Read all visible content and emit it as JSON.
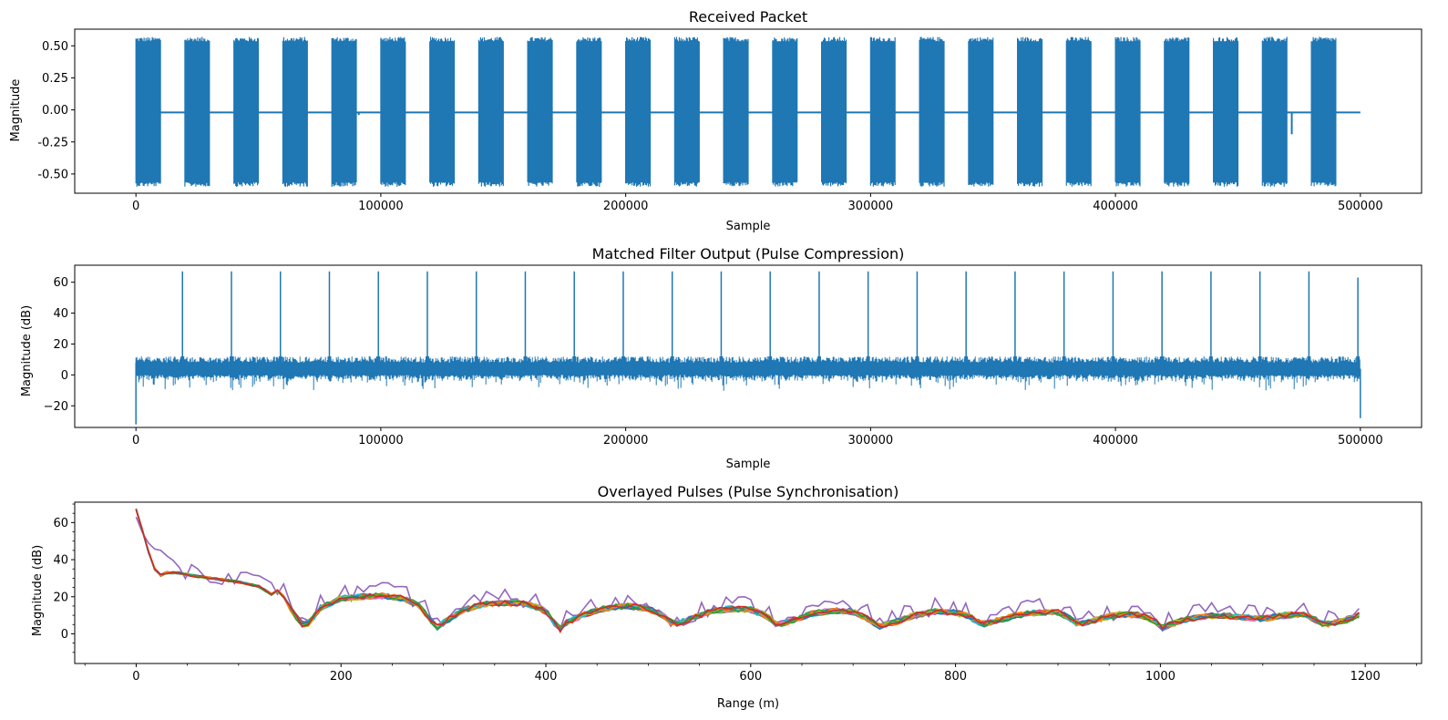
{
  "chart_data": [
    {
      "type": "line",
      "title": "Received Packet",
      "xlabel": "Sample",
      "ylabel": "Magnitude",
      "xlim": [
        -25000,
        525000
      ],
      "ylim": [
        -0.65,
        0.63
      ],
      "xticks": [
        0,
        100000,
        200000,
        300000,
        400000,
        500000
      ],
      "xtick_labels": [
        "0",
        "100000",
        "200000",
        "300000",
        "400000",
        "500000"
      ],
      "yticks": [
        0.5,
        0.25,
        0.0,
        -0.25,
        -0.5
      ],
      "ytick_labels": [
        "0.50",
        "0.25",
        "0.00",
        "-0.25",
        "-0.50"
      ],
      "grid": false,
      "series": [
        {
          "color": "#1f77b4",
          "burst_starts": [
            0,
            20000,
            40000,
            60000,
            80000,
            100000,
            120000,
            140000,
            160000,
            180000,
            200000,
            220000,
            240000,
            260000,
            280000,
            300000,
            320000,
            340000,
            360000,
            380000,
            400000,
            420000,
            440000,
            460000,
            480000
          ],
          "burst_length": 10000,
          "burst_amplitude": [
            -0.58,
            0.55
          ],
          "baseline": -0.02,
          "total_samples": 500000,
          "glitches": [
            {
              "x": 91000,
              "y": -0.04
            },
            {
              "x": 441000,
              "y": -0.1
            },
            {
              "x": 472000,
              "y": -0.19
            }
          ]
        }
      ]
    },
    {
      "type": "line",
      "title": "Matched Filter Output (Pulse Compression)",
      "xlabel": "Sample",
      "ylabel": "Magnitude (dB)",
      "xlim": [
        -25000,
        525000
      ],
      "ylim": [
        -34,
        71
      ],
      "xticks": [
        0,
        100000,
        200000,
        300000,
        400000,
        500000
      ],
      "xtick_labels": [
        "0",
        "100000",
        "200000",
        "300000",
        "400000",
        "500000"
      ],
      "yticks": [
        60,
        40,
        20,
        0,
        -20
      ],
      "ytick_labels": [
        "60",
        "40",
        "20",
        "0",
        "−20"
      ],
      "grid": false,
      "series": [
        {
          "color": "#1f77b4",
          "noise_floor": 4,
          "peak_positions": [
            19000,
            39000,
            59000,
            79000,
            99000,
            119000,
            139000,
            159000,
            179000,
            199000,
            219000,
            239000,
            259000,
            279000,
            299000,
            319000,
            339000,
            359000,
            379000,
            399000,
            419000,
            439000,
            459000,
            479000,
            499000
          ],
          "peak_value": 67,
          "end_peak_value": 63,
          "min_value": -32
        }
      ]
    },
    {
      "type": "line",
      "title": "Overlayed Pulses (Pulse Synchronisation)",
      "xlabel": "Range (m)",
      "ylabel": "Magnitude (dB)",
      "xlim": [
        -60,
        1255
      ],
      "ylim": [
        -16,
        71
      ],
      "xticks": [
        0,
        200,
        400,
        600,
        800,
        1000,
        1200
      ],
      "xtick_labels": [
        "0",
        "200",
        "400",
        "600",
        "800",
        "1000",
        "1200"
      ],
      "yticks": [
        60,
        40,
        20,
        0
      ],
      "ytick_labels": [
        "60",
        "40",
        "20",
        "0"
      ],
      "grid": false,
      "colors": [
        "#1f77b4",
        "#ff7f0e",
        "#2ca02c",
        "#d62728",
        "#9467bd",
        "#8c564b",
        "#e377c2",
        "#7f7f7f",
        "#bcbd22",
        "#17becf"
      ],
      "series_count": 24,
      "range_step_m": 6,
      "range_max_m": 1194,
      "envelope": {
        "x": [
          0,
          5,
          10,
          16,
          22,
          30,
          40,
          60,
          80,
          100,
          120,
          133,
          140,
          145,
          150,
          160,
          165,
          172,
          180,
          200,
          220,
          240,
          260,
          275,
          285,
          295,
          300,
          320,
          340,
          360,
          380,
          400,
          413,
          420,
          440,
          460,
          480,
          500,
          515,
          525,
          540,
          560,
          580,
          600,
          615,
          625,
          640,
          660,
          680,
          700,
          715,
          725,
          740,
          760,
          780,
          800,
          815,
          825,
          840,
          860,
          880,
          900,
          910,
          920,
          940,
          960,
          980,
          995,
          1000,
          1010,
          1020,
          1040,
          1060,
          1080,
          1100,
          1120,
          1140,
          1150,
          1160,
          1180,
          1194
        ],
        "y": [
          67,
          58,
          48,
          37,
          31,
          33,
          33,
          31,
          29.5,
          28,
          25.5,
          21,
          24,
          19,
          14,
          6,
          4,
          8,
          14,
          19,
          20,
          20.5,
          19,
          16,
          9,
          3,
          6,
          13,
          16,
          16.5,
          16.5,
          12.5,
          2,
          6,
          11,
          14,
          15,
          13.5,
          10,
          5,
          8,
          12,
          13.5,
          13,
          10,
          5,
          7,
          11,
          12.5,
          12,
          8,
          4,
          6,
          10,
          12,
          11.5,
          9,
          5,
          7,
          10,
          11.5,
          11.5,
          9,
          5,
          8,
          10.5,
          10,
          7,
          3,
          5,
          7,
          9.5,
          10,
          9,
          8,
          10,
          10.5,
          8,
          5,
          7,
          10
        ]
      },
      "outlier_series": {
        "color": "#9467bd",
        "x": [
          0,
          8,
          16,
          24,
          30,
          40
        ],
        "y": [
          63,
          52,
          46,
          45,
          42,
          38
        ]
      }
    }
  ]
}
